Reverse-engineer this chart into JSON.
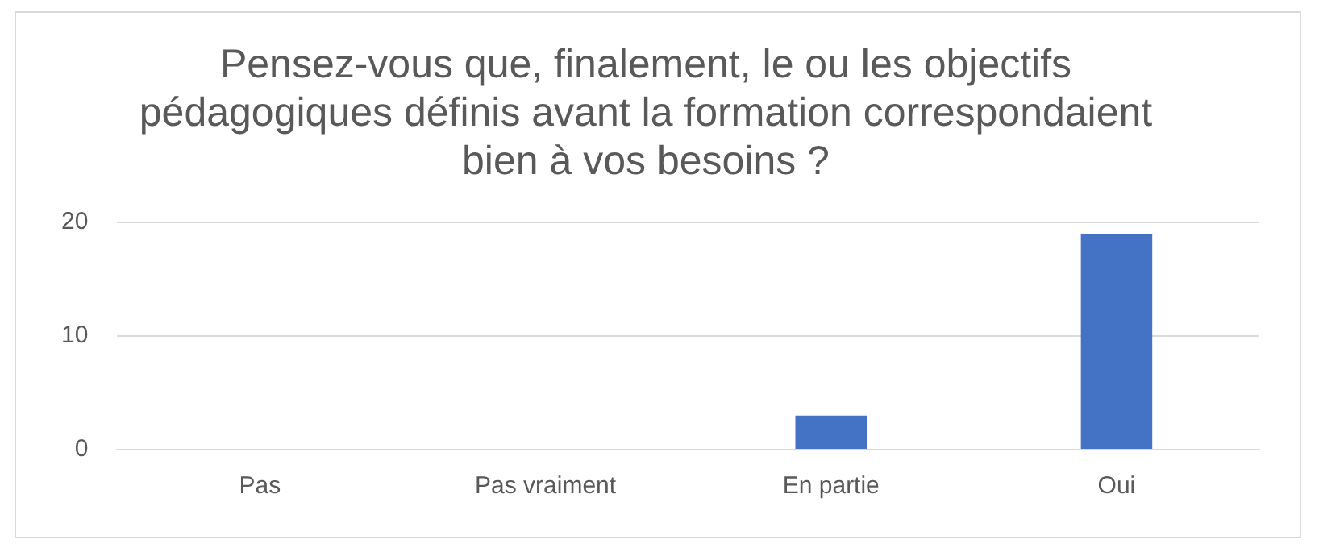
{
  "chart_data": {
    "type": "bar",
    "title": "Pensez-vous que, finalement, le ou les objectifs pédagogiques définis avant la formation correspondaient bien à vos besoins ?",
    "categories": [
      "Pas",
      "Pas vraiment",
      "En partie",
      "Oui"
    ],
    "values": [
      0,
      0,
      3,
      19
    ],
    "color": "#4472c4",
    "ylim": [
      0,
      20
    ],
    "yticks": [
      0,
      10,
      20
    ],
    "grid": "y",
    "legend": false
  }
}
